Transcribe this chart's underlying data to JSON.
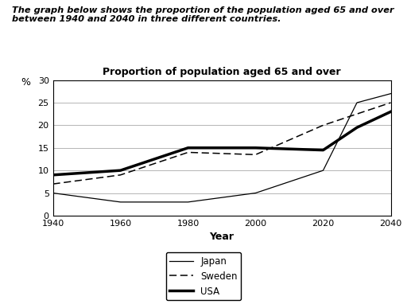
{
  "title": "Proportion of population aged 65 and over",
  "xlabel": "Year",
  "ylabel": "%",
  "subtitle": "The graph below shows the proportion of the population aged 65 and over\nbetween 1940 and 2040 in three different countries.",
  "japan_x": [
    1940,
    1960,
    1980,
    2000,
    2020,
    2030,
    2040
  ],
  "japan_y": [
    5.0,
    3.0,
    3.0,
    5.0,
    10.0,
    25.0,
    27.0
  ],
  "sweden_x": [
    1940,
    1960,
    1980,
    2000,
    2020,
    2040
  ],
  "sweden_y": [
    7.0,
    9.0,
    14.0,
    13.5,
    20.0,
    25.0
  ],
  "usa_x": [
    1940,
    1960,
    1980,
    2000,
    2020,
    2030,
    2040
  ],
  "usa_y": [
    9.0,
    10.0,
    15.0,
    15.0,
    14.5,
    19.5,
    23.0
  ],
  "ylim": [
    0,
    30
  ],
  "yticks": [
    0,
    5,
    10,
    15,
    20,
    25,
    30
  ],
  "xticks": [
    1940,
    1960,
    1980,
    2000,
    2020,
    2040
  ],
  "background_color": "#ffffff",
  "grid_color": "#aaaaaa",
  "legend_labels": [
    "Japan",
    "Sweden",
    "USA"
  ]
}
